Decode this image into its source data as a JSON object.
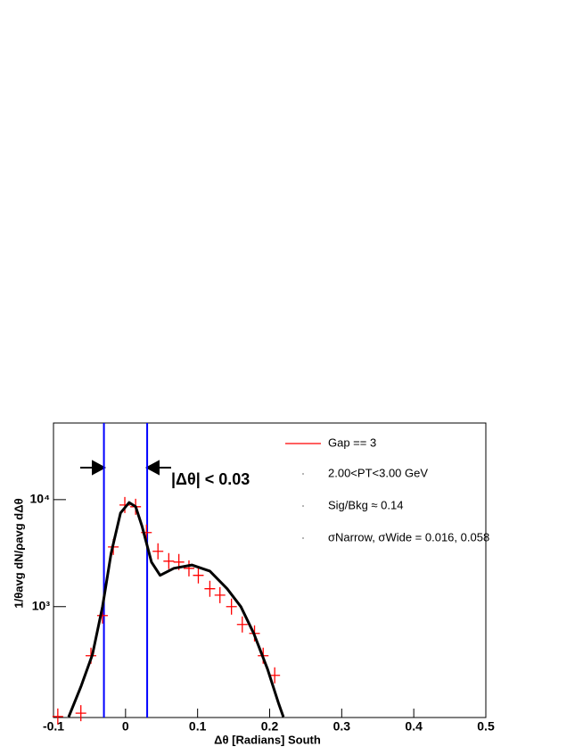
{
  "chart_data": {
    "type": "scatter",
    "x_label": "Δθ [Radians] South",
    "y_label": "1/θavg dN/ρavg dΔθ",
    "xlim": [
      -0.1,
      0.5
    ],
    "xticks": [
      -0.1,
      0,
      0.1,
      0.2,
      0.3,
      0.4,
      0.5
    ],
    "ylim": [
      92,
      52000
    ],
    "log_y": true,
    "yticks": [
      {
        "value": 1000,
        "label": "10³"
      },
      {
        "value": 10000,
        "label": "10⁴"
      }
    ],
    "series": [
      {
        "name": "Gap == 3",
        "color": "#ff0000",
        "style": "markers",
        "x": [
          -0.094,
          -0.062,
          -0.048,
          -0.032,
          -0.017,
          -0.001,
          0.014,
          0.029,
          0.045,
          0.06,
          0.074,
          0.088,
          0.101,
          0.117,
          0.131,
          0.147,
          0.162,
          0.179,
          0.191,
          0.207
        ],
        "values": [
          94,
          101,
          348,
          825,
          3610,
          8910,
          8580,
          4920,
          3290,
          2660,
          2610,
          2280,
          1960,
          1470,
          1280,
          1000,
          681,
          562,
          348,
          228
        ]
      },
      {
        "color": "#000000",
        "style": "line",
        "x": [
          -0.079,
          -0.062,
          -0.046,
          -0.032,
          -0.02,
          -0.007,
          0.005,
          0.014,
          0.023,
          0.036,
          0.048,
          0.067,
          0.092,
          0.117,
          0.141,
          0.16,
          0.178,
          0.197,
          0.212,
          0.219
        ],
        "values": [
          93,
          178,
          356,
          1000,
          3160,
          7500,
          9400,
          8580,
          5620,
          2610,
          1960,
          2280,
          2450,
          2150,
          1470,
          1000,
          562,
          261,
          127,
          93
        ]
      }
    ],
    "cut_lines": [
      -0.03,
      0.03
    ],
    "cut_color": "#0000ff",
    "annotation": "|Δθ| < 0.03",
    "legend_notes": [
      "2.00<PT<3.00 GeV",
      "Sig/Bkg ≈ 0.14",
      "σNarrow, σWide = 0.016, 0.058"
    ],
    "legend_position": "upper right"
  }
}
